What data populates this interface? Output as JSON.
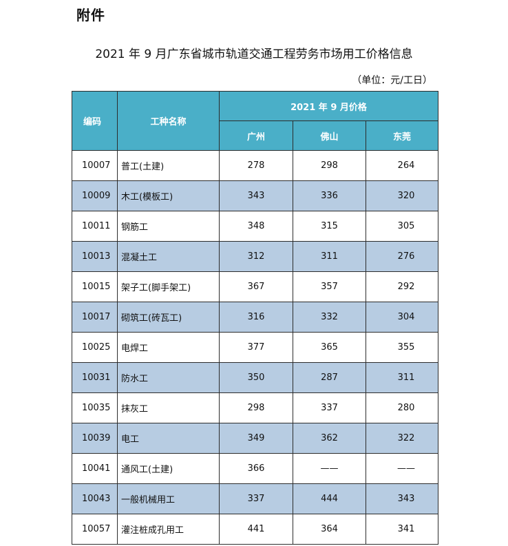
{
  "attachment_label": "附件",
  "title": "2021 年 9 月广东省城市轨道交通工程劳务市场用工价格信息",
  "unit_note": "（单位：元/工日）",
  "table": {
    "header": {
      "code": "编码",
      "name": "工种名称",
      "group": "2021 年 9 月价格",
      "cities": [
        "广州",
        "佛山",
        "东莞"
      ]
    },
    "rows": [
      {
        "code": "10007",
        "name": "普工(土建)",
        "guangzhou": "278",
        "foshan": "298",
        "dongguan": "264"
      },
      {
        "code": "10009",
        "name": "木工(模板工)",
        "guangzhou": "343",
        "foshan": "336",
        "dongguan": "320"
      },
      {
        "code": "10011",
        "name": "钢筋工",
        "guangzhou": "348",
        "foshan": "315",
        "dongguan": "305"
      },
      {
        "code": "10013",
        "name": "混凝土工",
        "guangzhou": "312",
        "foshan": "311",
        "dongguan": "276"
      },
      {
        "code": "10015",
        "name": "架子工(脚手架工)",
        "guangzhou": "367",
        "foshan": "357",
        "dongguan": "292"
      },
      {
        "code": "10017",
        "name": "砌筑工(砖瓦工)",
        "guangzhou": "316",
        "foshan": "332",
        "dongguan": "304"
      },
      {
        "code": "10025",
        "name": "电焊工",
        "guangzhou": "377",
        "foshan": "365",
        "dongguan": "355"
      },
      {
        "code": "10031",
        "name": "防水工",
        "guangzhou": "350",
        "foshan": "287",
        "dongguan": "311"
      },
      {
        "code": "10035",
        "name": "抹灰工",
        "guangzhou": "298",
        "foshan": "337",
        "dongguan": "280"
      },
      {
        "code": "10039",
        "name": "电工",
        "guangzhou": "349",
        "foshan": "362",
        "dongguan": "322"
      },
      {
        "code": "10041",
        "name": "通风工(土建)",
        "guangzhou": "366",
        "foshan": "——",
        "dongguan": "——"
      },
      {
        "code": "10043",
        "name": "一般机械用工",
        "guangzhou": "337",
        "foshan": "444",
        "dongguan": "343"
      },
      {
        "code": "10057",
        "name": "灌注桩成孔用工",
        "guangzhou": "441",
        "foshan": "364",
        "dongguan": "341"
      }
    ]
  }
}
